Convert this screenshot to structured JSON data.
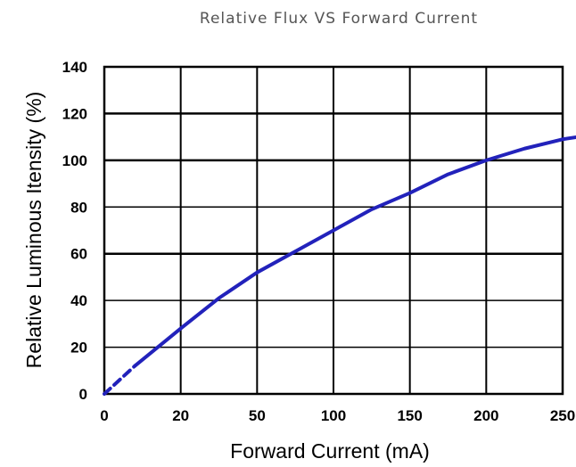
{
  "chart_data": {
    "type": "line",
    "title": "Relative Flux VS Forward Current",
    "xlabel": "Forward Current  (mA)",
    "ylabel": "Relative Luminous Itensity (%)",
    "x_tick_labels": [
      "0",
      "20",
      "50",
      "100",
      "150",
      "200",
      "250"
    ],
    "y_ticks": [
      0,
      20,
      40,
      60,
      80,
      100,
      120,
      140
    ],
    "ylim": [
      0,
      140
    ],
    "grid": true,
    "line_color": "#2222bb",
    "series": [
      {
        "x_tick_index": [
          0,
          0.2,
          0.4,
          0.7,
          1.0,
          1.5,
          2.0,
          2.5,
          3.0,
          3.5,
          4.0,
          4.5,
          5.0,
          5.5,
          6.0
        ],
        "values": [
          0,
          6,
          12,
          20,
          28,
          41,
          52,
          61,
          70,
          79,
          86,
          94,
          100,
          105,
          109
        ],
        "dashed_until_tick_index": 0.4
      },
      {
        "x_tick_index": [
          6.0,
          6.3,
          6.6,
          6.9,
          7.0
        ],
        "values": [
          109,
          110.5,
          112,
          113,
          113.5
        ]
      }
    ]
  }
}
